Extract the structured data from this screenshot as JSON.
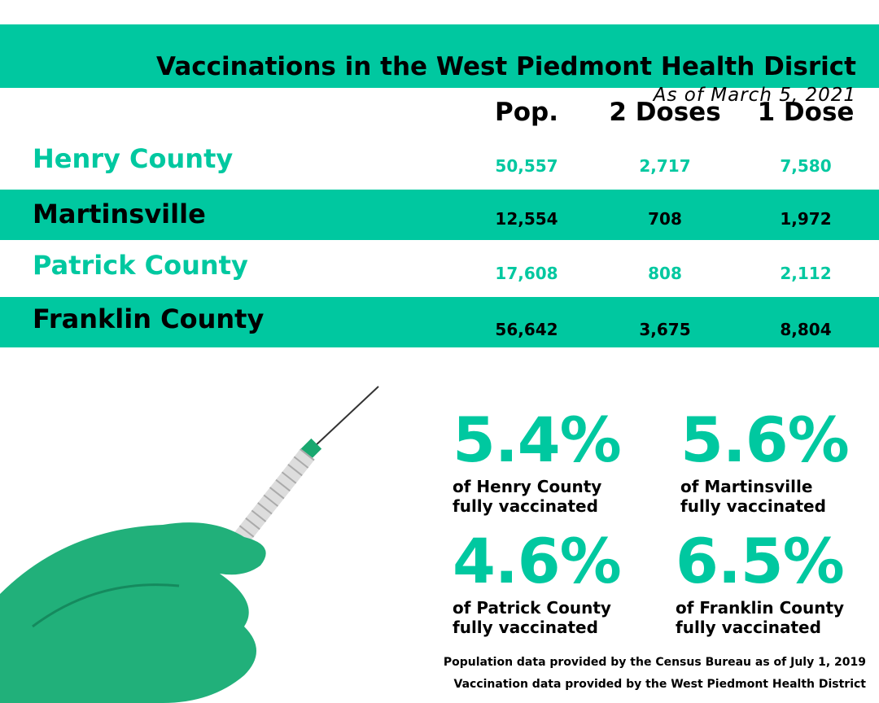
{
  "header": {
    "title": "Vaccinations in the West Piedmont Health Disrict",
    "subtitle": "As of March 5, 2021"
  },
  "columns": [
    "Pop.",
    "2 Doses",
    "1 Dose"
  ],
  "rows": [
    {
      "name": "Henry County",
      "pop": "50,557",
      "two_doses": "2,717",
      "one_dose": "7,580"
    },
    {
      "name": "Martinsville",
      "pop": "12,554",
      "two_doses": "708",
      "one_dose": "1,972"
    },
    {
      "name": "Patrick County",
      "pop": "17,608",
      "two_doses": "808",
      "one_dose": "2,112"
    },
    {
      "name": "Franklin County",
      "pop": "56,642",
      "two_doses": "3,675",
      "one_dose": "8,804"
    }
  ],
  "stats": [
    {
      "pct": "5.4%",
      "line1": "of Henry County",
      "line2": "fully vaccinated"
    },
    {
      "pct": "5.6%",
      "line1": "of Martinsville",
      "line2": "fully vaccinated"
    },
    {
      "pct": "4.6%",
      "line1": "of Patrick County",
      "line2": "fully vaccinated"
    },
    {
      "pct": "6.5%",
      "line1": "of Franklin County",
      "line2": "fully vaccinated"
    }
  ],
  "footnotes": [
    "Population data provided by the Census Bureau as of July 1, 2019",
    "Vaccination data provided by the West Piedmont Health District"
  ],
  "colors": {
    "accent": "#00c8a0"
  }
}
